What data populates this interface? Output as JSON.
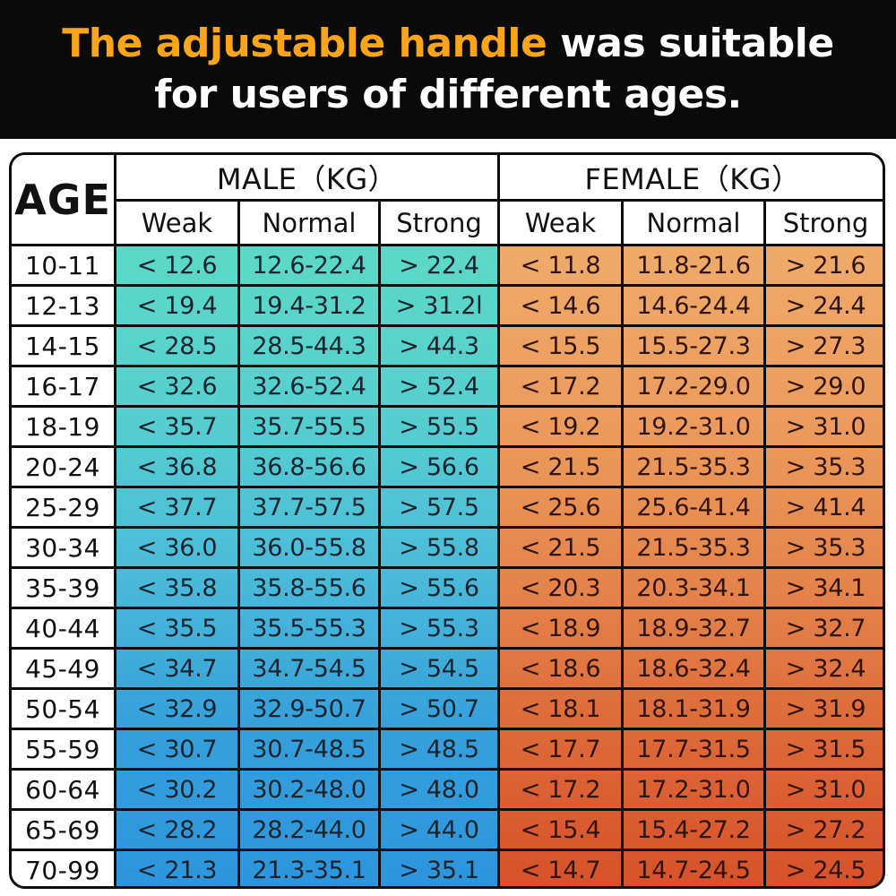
{
  "title": {
    "line1_highlight": "The adjustable handle",
    "line1_rest": " was suitable",
    "line2": "for users of different ages."
  },
  "colors": {
    "banner_bg": "#0a0a0a",
    "title_highlight": "#f8a51b",
    "male_top": "#5cd9c6",
    "male_bottom": "#2d95dd",
    "female_top": "#efab6b",
    "female_bottom": "#d7522a"
  },
  "chart_data": {
    "type": "table",
    "title": "The adjustable handle was suitable for users of different ages.",
    "col_groups": [
      "AGE",
      "MALE（KG）",
      "FEMALE（KG）"
    ],
    "sub_headers": [
      "Weak",
      "Normal",
      "Strong"
    ],
    "rows": [
      {
        "age": "10-11",
        "male": [
          "< 12.6",
          "12.6-22.4",
          "> 22.4"
        ],
        "female": [
          "< 11.8",
          "11.8-21.6",
          "> 21.6"
        ]
      },
      {
        "age": "12-13",
        "male": [
          "< 19.4",
          "19.4-31.2",
          "> 31.2l"
        ],
        "female": [
          "< 14.6",
          "14.6-24.4",
          "> 24.4"
        ]
      },
      {
        "age": "14-15",
        "male": [
          "< 28.5",
          "28.5-44.3",
          "> 44.3"
        ],
        "female": [
          "< 15.5",
          "15.5-27.3",
          "> 27.3"
        ]
      },
      {
        "age": "16-17",
        "male": [
          "< 32.6",
          "32.6-52.4",
          "> 52.4"
        ],
        "female": [
          "< 17.2",
          "17.2-29.0",
          "> 29.0"
        ]
      },
      {
        "age": "18-19",
        "male": [
          "< 35.7",
          "35.7-55.5",
          "> 55.5"
        ],
        "female": [
          "< 19.2",
          "19.2-31.0",
          "> 31.0"
        ]
      },
      {
        "age": "20-24",
        "male": [
          "< 36.8",
          "36.8-56.6",
          "> 56.6"
        ],
        "female": [
          "< 21.5",
          "21.5-35.3",
          "> 35.3"
        ]
      },
      {
        "age": "25-29",
        "male": [
          "< 37.7",
          "37.7-57.5",
          "> 57.5"
        ],
        "female": [
          "< 25.6",
          "25.6-41.4",
          "> 41.4"
        ]
      },
      {
        "age": "30-34",
        "male": [
          "< 36.0",
          "36.0-55.8",
          "> 55.8"
        ],
        "female": [
          "< 21.5",
          "21.5-35.3",
          "> 35.3"
        ]
      },
      {
        "age": "35-39",
        "male": [
          "< 35.8",
          "35.8-55.6",
          "> 55.6"
        ],
        "female": [
          "< 20.3",
          "20.3-34.1",
          "> 34.1"
        ]
      },
      {
        "age": "40-44",
        "male": [
          "< 35.5",
          "35.5-55.3",
          "> 55.3"
        ],
        "female": [
          "< 18.9",
          "18.9-32.7",
          "> 32.7"
        ]
      },
      {
        "age": "45-49",
        "male": [
          "< 34.7",
          "34.7-54.5",
          "> 54.5"
        ],
        "female": [
          "< 18.6",
          "18.6-32.4",
          "> 32.4"
        ]
      },
      {
        "age": "50-54",
        "male": [
          "< 32.9",
          "32.9-50.7",
          "> 50.7"
        ],
        "female": [
          "< 18.1",
          "18.1-31.9",
          "> 31.9"
        ]
      },
      {
        "age": "55-59",
        "male": [
          "< 30.7",
          "30.7-48.5",
          "> 48.5"
        ],
        "female": [
          "< 17.7",
          "17.7-31.5",
          "> 31.5"
        ]
      },
      {
        "age": "60-64",
        "male": [
          "< 30.2",
          "30.2-48.0",
          "> 48.0"
        ],
        "female": [
          "< 17.2",
          "17.2-31.0",
          "> 31.0"
        ]
      },
      {
        "age": "65-69",
        "male": [
          "< 28.2",
          "28.2-44.0",
          "> 44.0"
        ],
        "female": [
          "< 15.4",
          "15.4-27.2",
          "> 27.2"
        ]
      },
      {
        "age": "70-99",
        "male": [
          "< 21.3",
          "21.3-35.1",
          "> 35.1"
        ],
        "female": [
          "< 14.7",
          "14.7-24.5",
          "> 24.5"
        ]
      }
    ]
  }
}
